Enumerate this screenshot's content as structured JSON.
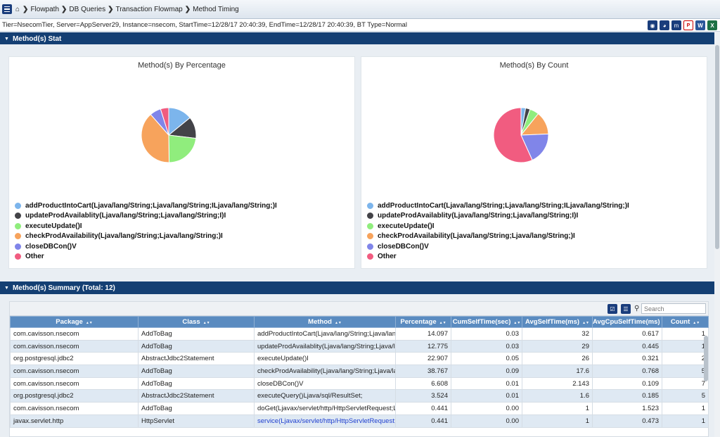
{
  "breadcrumb": {
    "items": [
      "Flowpath",
      "DB Queries",
      "Transaction Flowmap",
      "Method Timing"
    ]
  },
  "info": {
    "text": "Tier=NsecomTier, Server=AppServer29, Instance=nsecom, StartTime=12/28/17 20:40:39, EndTime=12/28/17 20:40:39, BT Type=Normal"
  },
  "toolbar_icons": [
    "chart-icon",
    "pie-icon",
    "m-icon",
    "pdf-export-icon",
    "word-export-icon",
    "excel-export-icon"
  ],
  "stats_panel": {
    "title": "Method(s) Stat"
  },
  "chart_data": [
    {
      "type": "pie",
      "title": "Method(s) By Percentage",
      "categories": [
        "addProductIntoCart(Ljava/lang/String;Ljava/lang/String;ILjava/lang/String;)I",
        "updateProdAvailablity(Ljava/lang/String;Ljava/lang/String;I)I",
        "executeUpdate()I",
        "checkProdAvailability(Ljava/lang/String;Ljava/lang/String;)I",
        "closeDBCon()V",
        "Other"
      ],
      "values": [
        14.097,
        12.775,
        22.907,
        38.767,
        6.608,
        4.846
      ],
      "colors": [
        "#7cb5ec",
        "#434348",
        "#90ed7d",
        "#f7a35c",
        "#8085e9",
        "#f15c80"
      ],
      "legend": "bottom-left"
    },
    {
      "type": "pie",
      "title": "Method(s) By Count",
      "categories": [
        "addProductIntoCart(Ljava/lang/String;Ljava/lang/String;ILjava/lang/String;)I",
        "updateProdAvailablity(Ljava/lang/String;Ljava/lang/String;I)I",
        "executeUpdate()I",
        "checkProdAvailability(Ljava/lang/String;Ljava/lang/String;)I",
        "closeDBCon()V",
        "Other"
      ],
      "values": [
        1,
        1,
        2,
        5,
        7,
        21
      ],
      "colors": [
        "#7cb5ec",
        "#434348",
        "#90ed7d",
        "#f7a35c",
        "#8085e9",
        "#f15c80"
      ],
      "legend": "bottom-left"
    }
  ],
  "summary_panel": {
    "title": "Method(s) Summary (Total: 12)",
    "search_placeholder": "Search",
    "columns": [
      "Package",
      "Class",
      "Method",
      "Percentage",
      "CumSelfTime(sec)",
      "AvgSelfTime(ms)",
      "AvgCpuSelfTime(ms)",
      "Count"
    ],
    "rows": [
      [
        "com.cavisson.nsecom",
        "AddToBag",
        "addProductIntoCart(Ljava/lang/String;Ljava/lang/String;ILjava/lang/String;)I",
        "14.097",
        "0.03",
        "32",
        "0.617",
        "1"
      ],
      [
        "com.cavisson.nsecom",
        "AddToBag",
        "updateProdAvailablity(Ljava/lang/String;Ljava/lang/String;I)I",
        "12.775",
        "0.03",
        "29",
        "0.445",
        "1"
      ],
      [
        "org.postgresql.jdbc2",
        "AbstractJdbc2Statement",
        "executeUpdate()I",
        "22.907",
        "0.05",
        "26",
        "0.321",
        "2"
      ],
      [
        "com.cavisson.nsecom",
        "AddToBag",
        "checkProdAvailability(Ljava/lang/String;Ljava/lang/String;)I",
        "38.767",
        "0.09",
        "17.6",
        "0.768",
        "5"
      ],
      [
        "com.cavisson.nsecom",
        "AddToBag",
        "closeDBCon()V",
        "6.608",
        "0.01",
        "2.143",
        "0.109",
        "7"
      ],
      [
        "org.postgresql.jdbc2",
        "AbstractJdbc2Statement",
        "executeQuery()Ljava/sql/ResultSet;",
        "3.524",
        "0.01",
        "1.6",
        "0.185",
        "5"
      ],
      [
        "com.cavisson.nsecom",
        "AddToBag",
        "doGet(Ljavax/servlet/http/HttpServletRequest;Ljavax/servlet/http/HttpServletResponse;)V",
        "0.441",
        "0.00",
        "1",
        "1.523",
        "1"
      ],
      [
        "javax.servlet.http",
        "HttpServlet",
        "service(Ljavax/servlet/http/HttpServletRequest;Ljavax/servlet/http/HttpServletResponse;)V",
        "0.441",
        "0.00",
        "1",
        "0.473",
        "1"
      ]
    ]
  }
}
